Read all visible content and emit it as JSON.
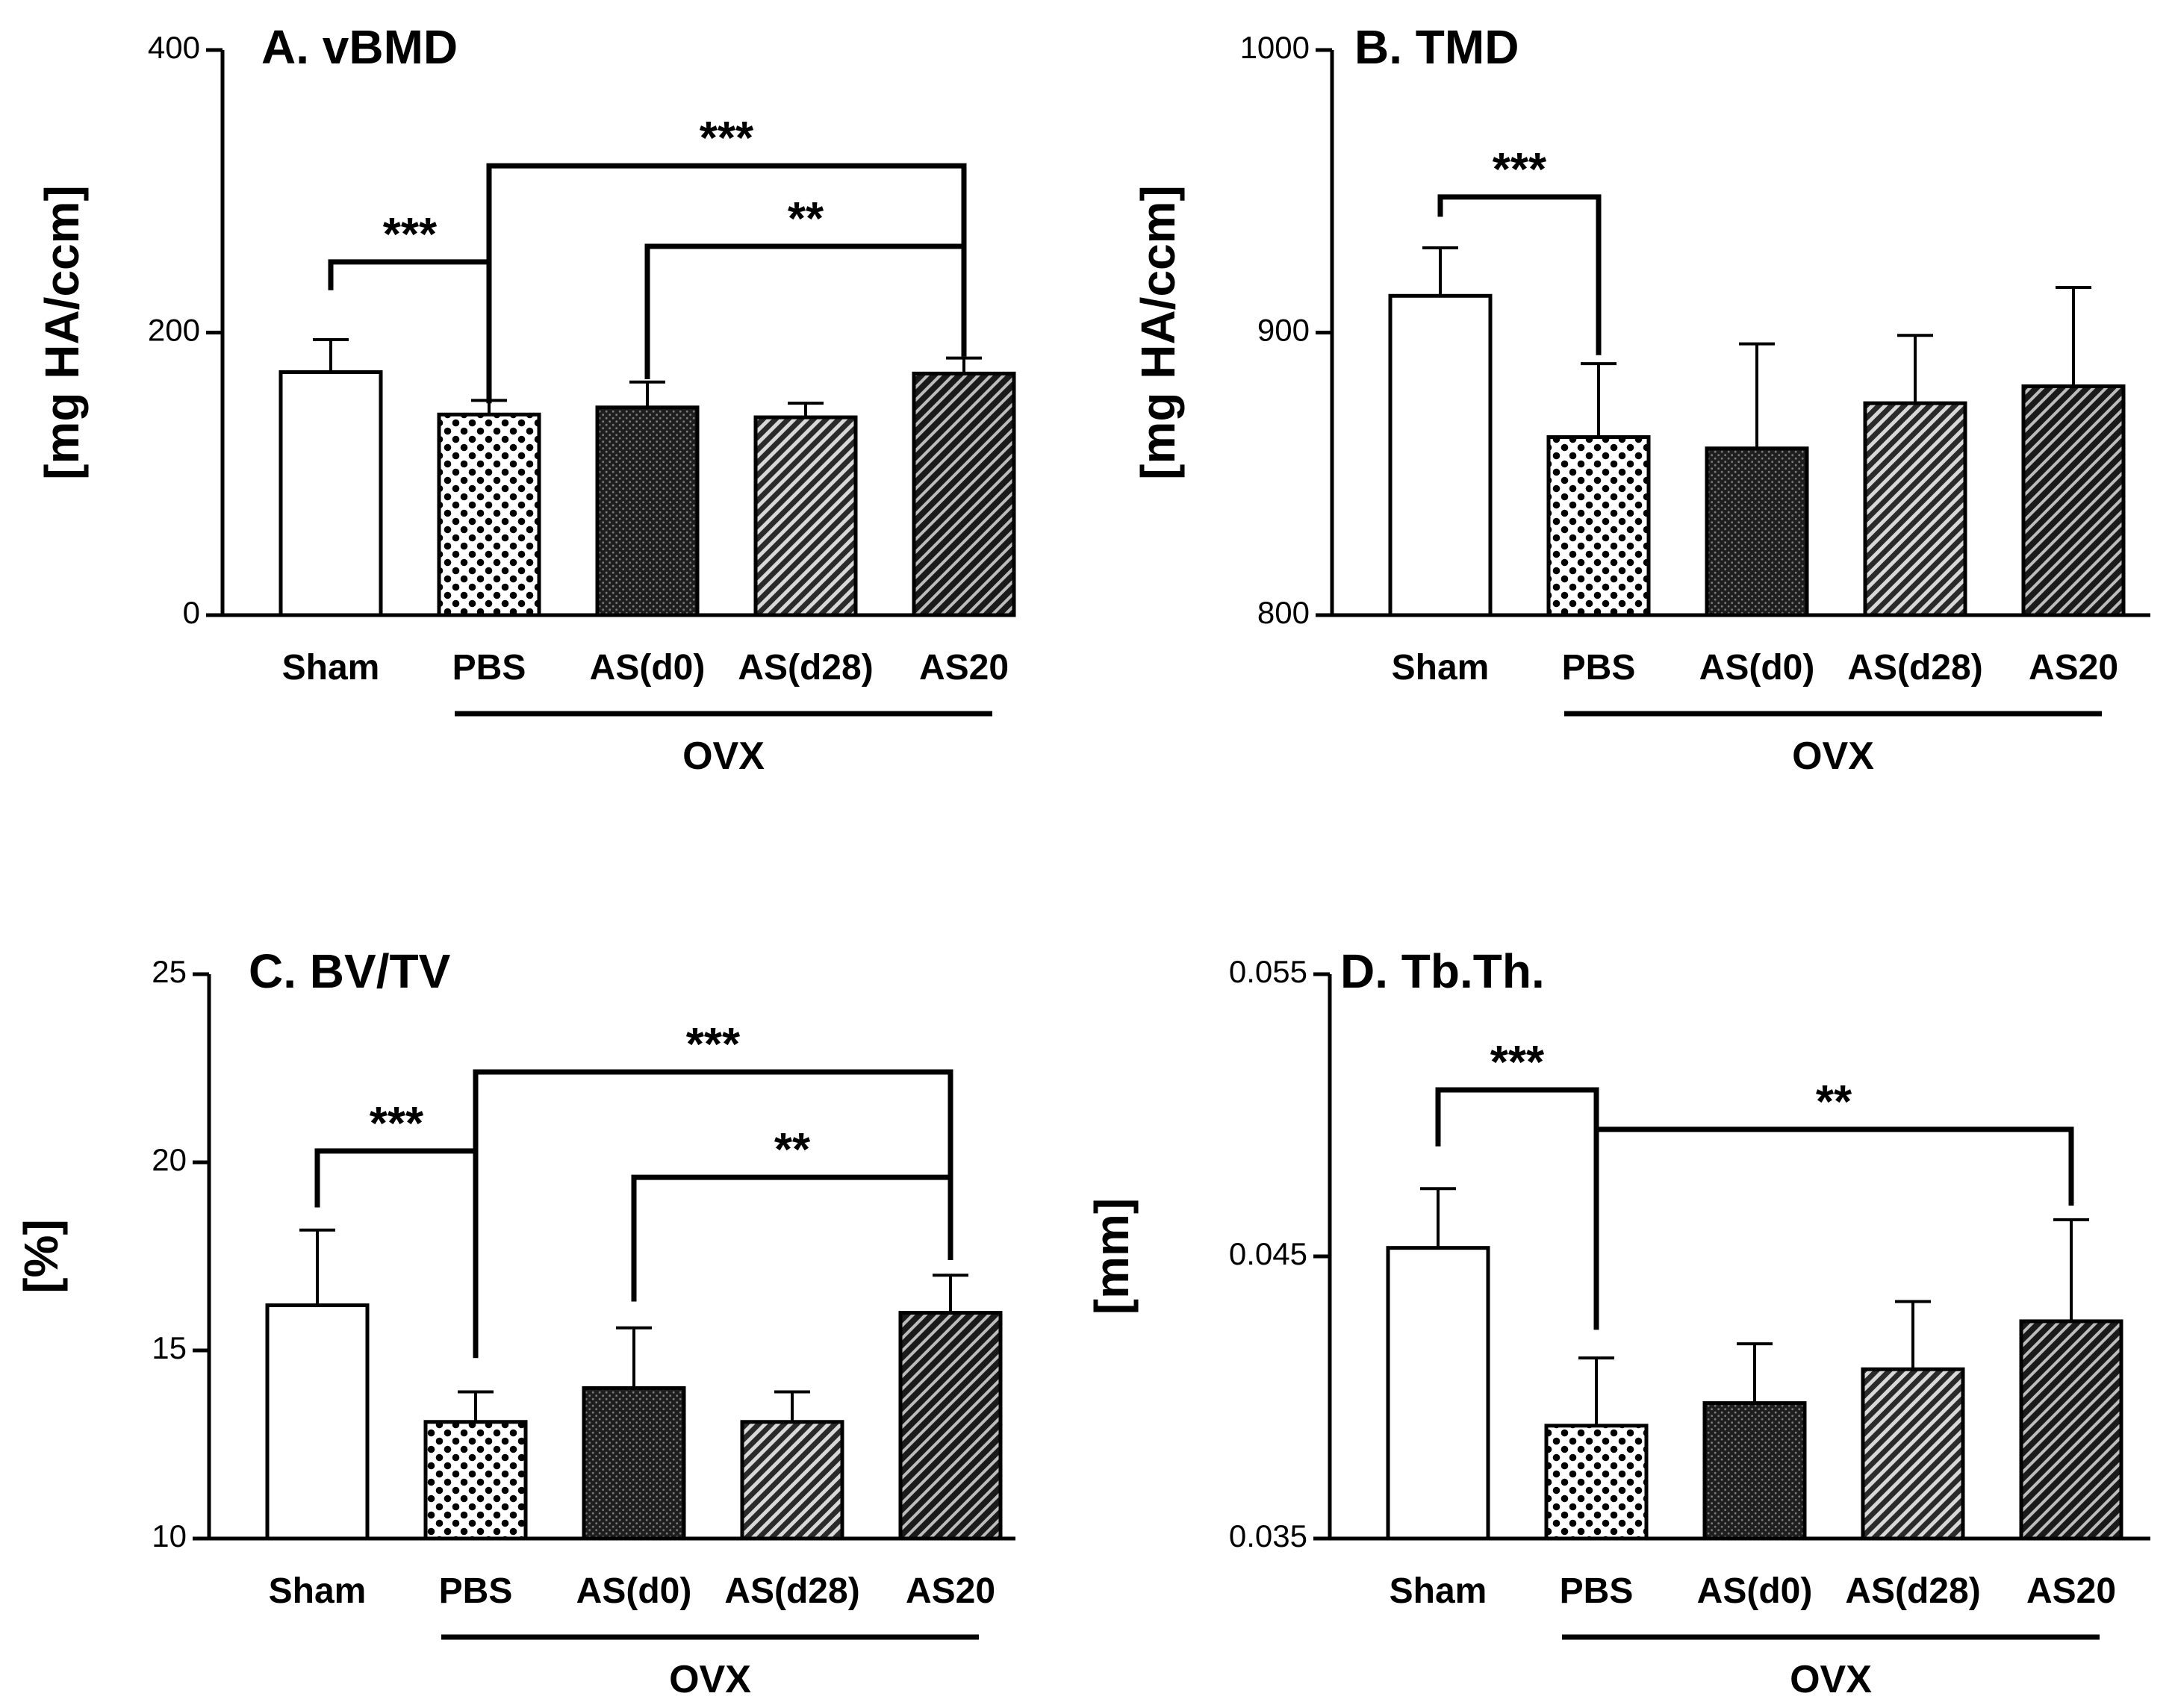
{
  "figure": {
    "colors": {
      "ink": "#000000",
      "background": "#ffffff",
      "fill_white": "#ffffff"
    },
    "group_label": "OVX"
  },
  "chart_data": [
    {
      "type": "bar",
      "title": "A. vBMD",
      "ylabel": "[mg HA/ccm]",
      "xlabel": "",
      "ylim": [
        0,
        400
      ],
      "yticks": [
        "0",
        "200",
        "400"
      ],
      "categories": [
        "Sham",
        "PBS",
        "AS(d0)",
        "AS(d28)",
        "AS20"
      ],
      "values": [
        172,
        142,
        147,
        140,
        171
      ],
      "errors": [
        23,
        10,
        18,
        10,
        11
      ],
      "patterns": [
        "white",
        "dots",
        "dense-cross",
        "diagonal",
        "diagonal-dark"
      ],
      "group_label": "OVX",
      "group_span": [
        "PBS",
        "AS20"
      ],
      "significance": [
        {
          "from": "Sham",
          "to": "PBS",
          "label": "***",
          "y": 250,
          "drop_from": 230,
          "drop_to": 150
        },
        {
          "from": "PBS",
          "to": "AS20",
          "label": "***",
          "y": 318,
          "drop_from": 150,
          "drop_to": 183
        },
        {
          "from": "AS(d0)",
          "to": "AS20",
          "label": "**",
          "y": 261,
          "drop_from": 167,
          "drop_to": 183
        }
      ]
    },
    {
      "type": "bar",
      "title": "B. TMD",
      "ylabel": "[mg HA/ccm]",
      "xlabel": "",
      "ylim": [
        800,
        1000
      ],
      "yticks": [
        "800",
        "900",
        "1000"
      ],
      "categories": [
        "Sham",
        "PBS",
        "AS(d0)",
        "AS(d28)",
        "AS20"
      ],
      "values": [
        913,
        863,
        859,
        875,
        881
      ],
      "errors": [
        17,
        26,
        37,
        24,
        35
      ],
      "patterns": [
        "white",
        "dots",
        "dense-cross",
        "diagonal",
        "diagonal-dark"
      ],
      "group_label": "OVX",
      "group_span": [
        "PBS",
        "AS20"
      ],
      "significance": [
        {
          "from": "Sham",
          "to": "PBS",
          "label": "***",
          "y": 948,
          "drop_from": 941,
          "drop_to": 892
        }
      ]
    },
    {
      "type": "bar",
      "title": "C. BV/TV",
      "ylabel": "[%]",
      "xlabel": "",
      "ylim": [
        10,
        25
      ],
      "yticks": [
        "10",
        "15",
        "20",
        "25"
      ],
      "categories": [
        "Sham",
        "PBS",
        "AS(d0)",
        "AS(d28)",
        "AS20"
      ],
      "values": [
        16.2,
        13.1,
        14.0,
        13.1,
        16.0
      ],
      "errors": [
        2.0,
        0.8,
        1.6,
        0.8,
        1.0
      ],
      "patterns": [
        "white",
        "dots",
        "dense-cross",
        "diagonal",
        "diagonal-dark"
      ],
      "group_label": "OVX",
      "group_span": [
        "PBS",
        "AS20"
      ],
      "significance": [
        {
          "from": "Sham",
          "to": "PBS",
          "label": "***",
          "y": 20.3,
          "drop_from": 18.8,
          "drop_to": 14.8
        },
        {
          "from": "PBS",
          "to": "AS20",
          "label": "***",
          "y": 22.4,
          "drop_from": 14.8,
          "drop_to": 17.4
        },
        {
          "from": "AS(d0)",
          "to": "AS20",
          "label": "**",
          "y": 19.6,
          "drop_from": 16.3,
          "drop_to": 17.4
        }
      ]
    },
    {
      "type": "bar",
      "title": "D. Tb.Th.",
      "ylabel": "[mm]",
      "xlabel": "",
      "ylim": [
        0.035,
        0.055
      ],
      "yticks": [
        "0.035",
        "0.045",
        "0.055"
      ],
      "categories": [
        "Sham",
        "PBS",
        "AS(d0)",
        "AS(d28)",
        "AS20"
      ],
      "values": [
        0.0453,
        0.039,
        0.0398,
        0.041,
        0.0427
      ],
      "errors": [
        0.0021,
        0.0024,
        0.0021,
        0.0024,
        0.0036
      ],
      "patterns": [
        "white",
        "dots",
        "dense-cross",
        "diagonal",
        "diagonal-dark"
      ],
      "group_label": "OVX",
      "group_span": [
        "PBS",
        "AS20"
      ],
      "significance": [
        {
          "from": "Sham",
          "to": "PBS",
          "label": "***",
          "y": 0.0509,
          "drop_from": 0.0489,
          "drop_to": 0.0424
        },
        {
          "from": "PBS",
          "to": "AS20",
          "label": "**",
          "y": 0.0495,
          "drop_from": 0.0424,
          "drop_to": 0.0468
        }
      ]
    }
  ]
}
